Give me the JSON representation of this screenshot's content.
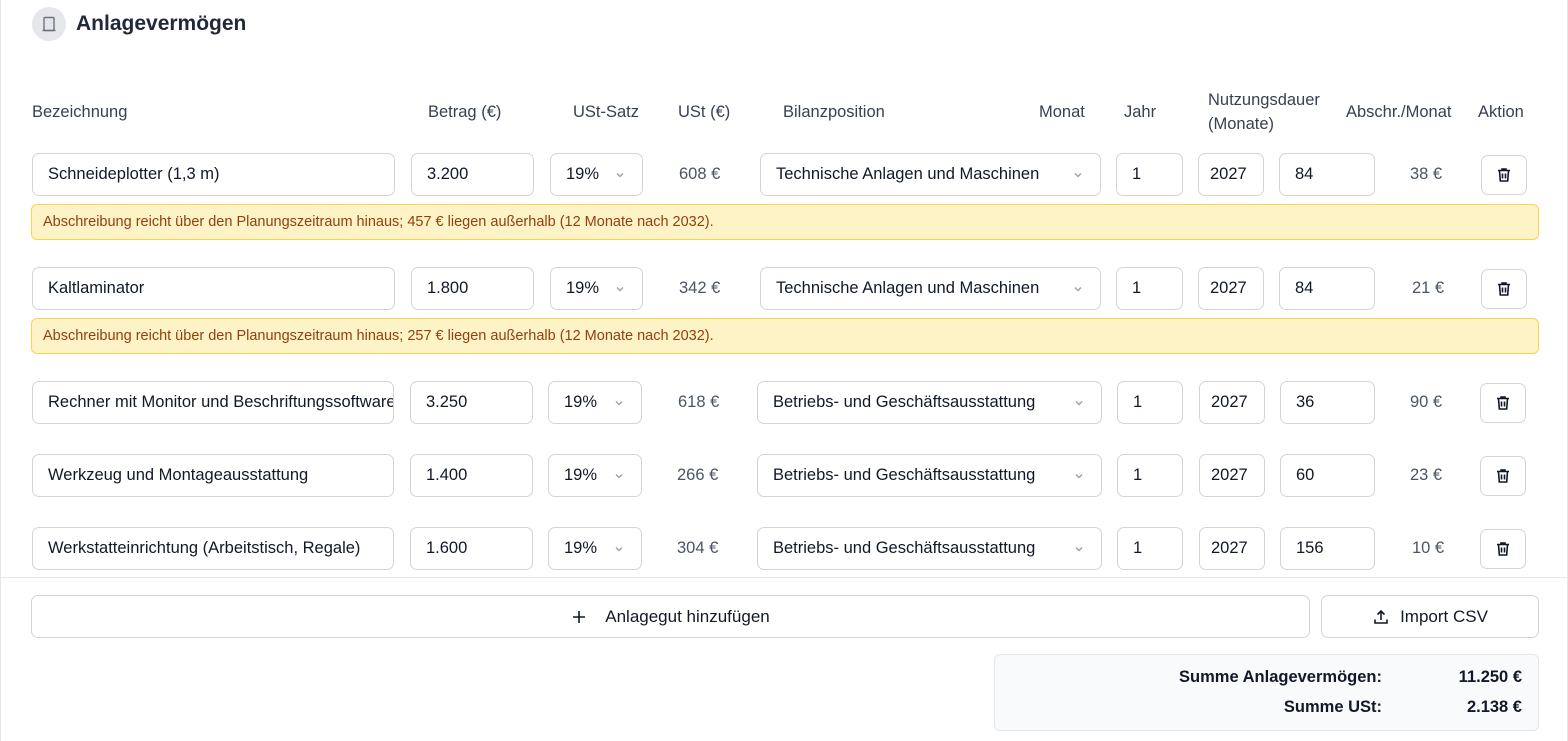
{
  "section": {
    "title": "Anlagevermögen",
    "icon": "building-icon"
  },
  "columns": {
    "bezeichnung": "Bezeichnung",
    "betrag": "Betrag (€)",
    "ust_satz": "USt-Satz",
    "ust": "USt (€)",
    "bilanzposition": "Bilanzposition",
    "monat": "Monat",
    "jahr": "Jahr",
    "nutzungsdauer_1": "Nutzungsdauer",
    "nutzungsdauer_2": "(Monate)",
    "abschr": "Abschr./Monat",
    "aktion": "Aktion"
  },
  "rows": [
    {
      "name": "Schneideplotter (1,3 m)",
      "betrag": "3.200",
      "ust_satz": "19%",
      "ust": "608 €",
      "bilanzposition": "Technische Anlagen und Maschinen",
      "monat": "1",
      "jahr": "2027",
      "nutzungsdauer": "84",
      "abschr": "38 €",
      "warning": "Abschreibung reicht über den Planungszeitraum hinaus; 457 € liegen außerhalb (12 Monate nach 2032)."
    },
    {
      "name": "Kaltlaminator",
      "betrag": "1.800",
      "ust_satz": "19%",
      "ust": "342 €",
      "bilanzposition": "Technische Anlagen und Maschinen",
      "monat": "1",
      "jahr": "2027",
      "nutzungsdauer": "84",
      "abschr": "21 €",
      "warning": "Abschreibung reicht über den Planungszeitraum hinaus; 257 € liegen außerhalb (12 Monate nach 2032)."
    },
    {
      "name": "Rechner mit Monitor und Beschriftungssoftware",
      "betrag": "3.250",
      "ust_satz": "19%",
      "ust": "618 €",
      "bilanzposition": "Betriebs- und Geschäftsausstattung",
      "monat": "1",
      "jahr": "2027",
      "nutzungsdauer": "36",
      "abschr": "90 €"
    },
    {
      "name": "Werkzeug und Montageausstattung",
      "betrag": "1.400",
      "ust_satz": "19%",
      "ust": "266 €",
      "bilanzposition": "Betriebs- und Geschäftsausstattung",
      "monat": "1",
      "jahr": "2027",
      "nutzungsdauer": "60",
      "abschr": "23 €"
    },
    {
      "name": "Werkstatteinrichtung (Arbeitstisch, Regale)",
      "betrag": "1.600",
      "ust_satz": "19%",
      "ust": "304 €",
      "bilanzposition": "Betriebs- und Geschäftsausstattung",
      "monat": "1",
      "jahr": "2027",
      "nutzungsdauer": "156",
      "abschr": "10 €"
    }
  ],
  "actions": {
    "add_label": "Anlagegut hinzufügen",
    "import_label": "Import CSV"
  },
  "summary": {
    "total_label": "Summe Anlagevermögen:",
    "total_value": "11.250 €",
    "ust_label": "Summe USt:",
    "ust_value": "2.138 €"
  },
  "colors": {
    "warning_bg": "#fef3c7",
    "warning_border": "#fcd34d",
    "warning_text": "#92400e"
  }
}
